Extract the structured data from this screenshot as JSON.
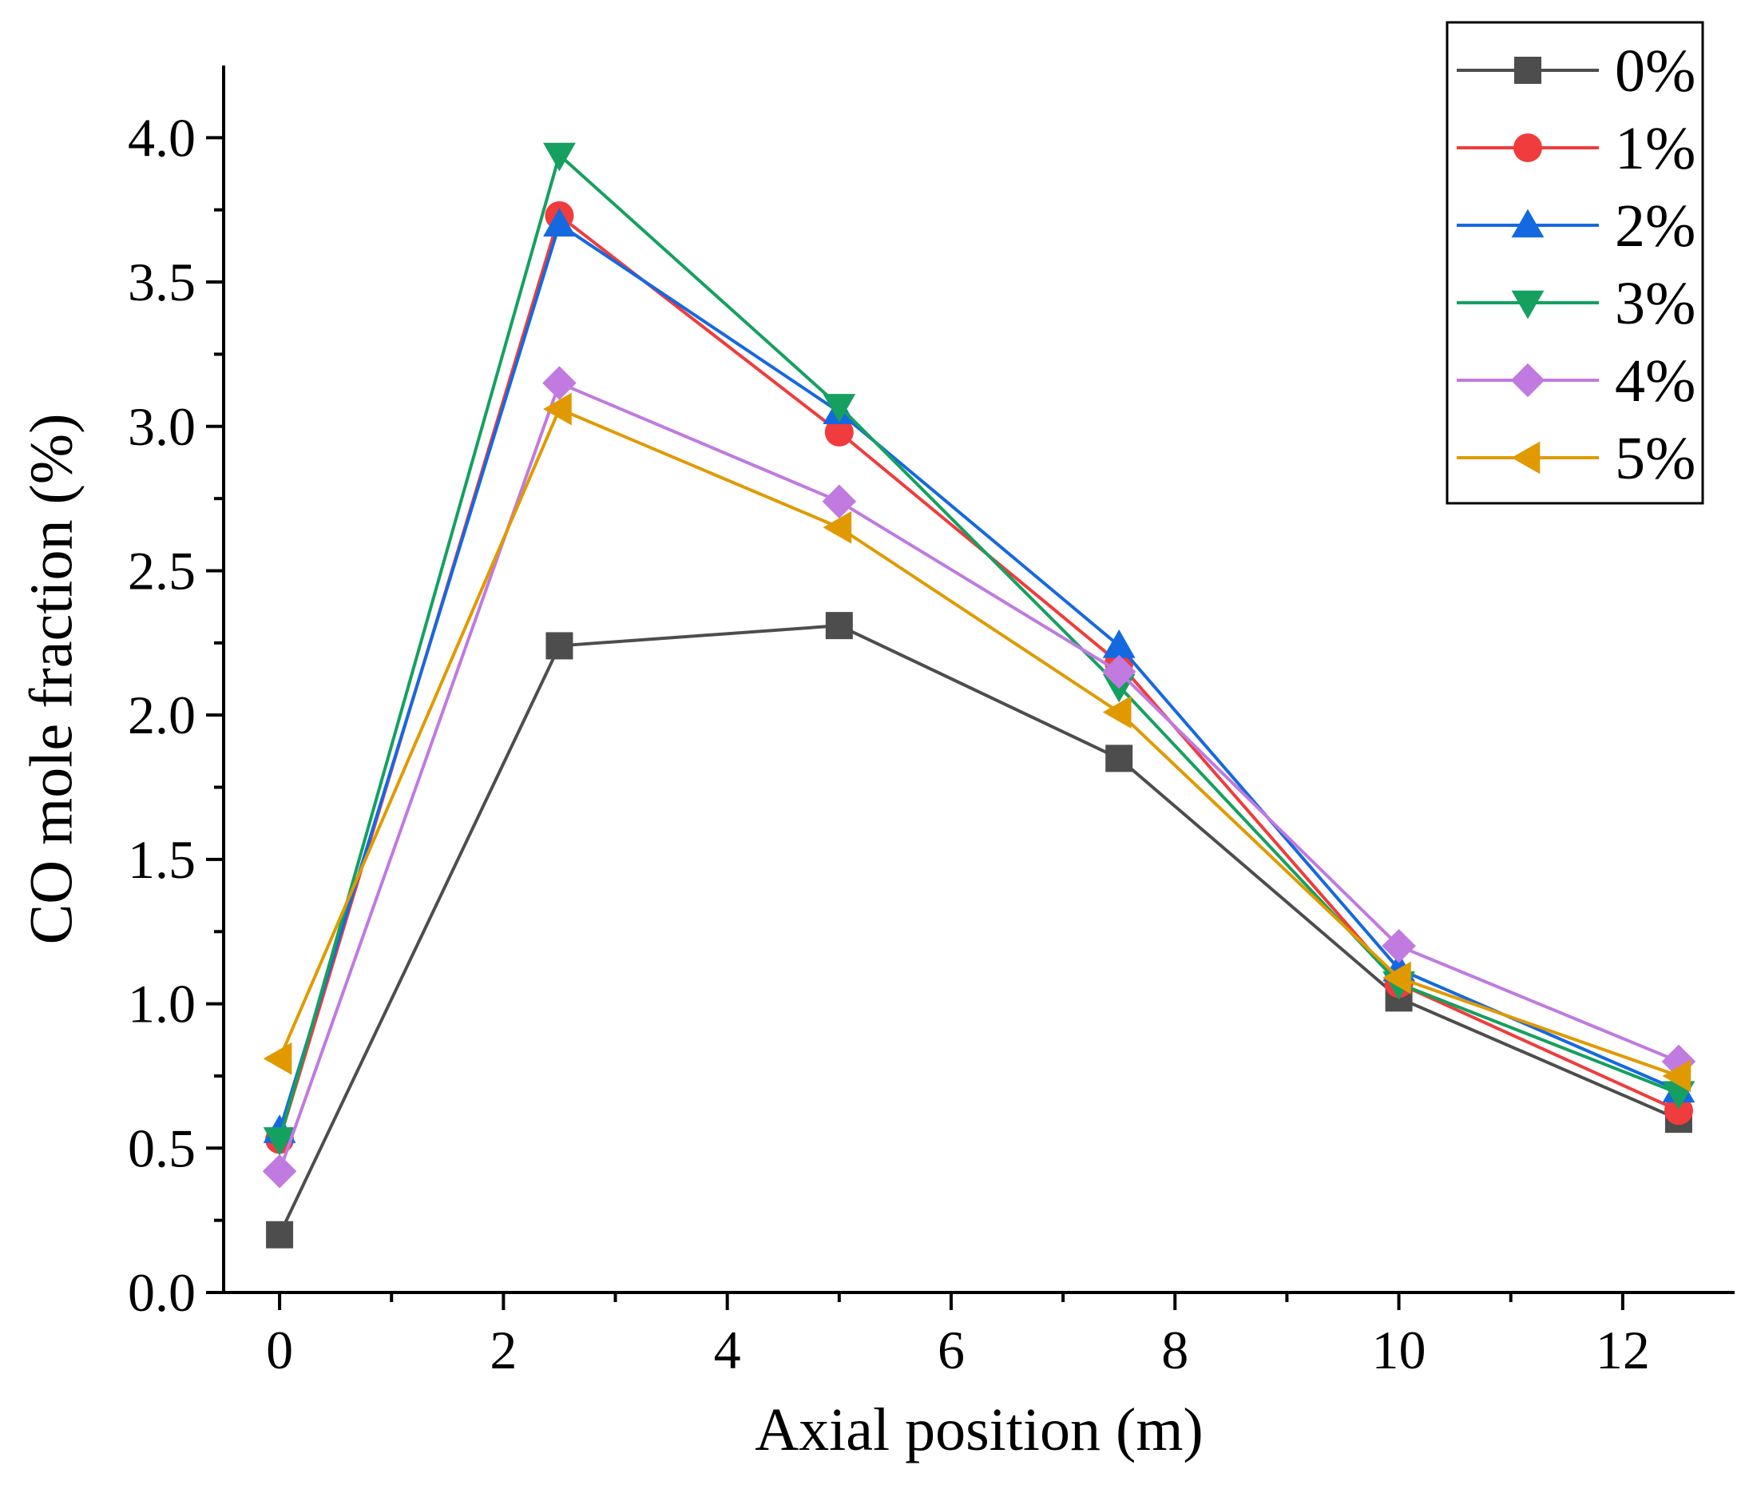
{
  "chart_data": {
    "type": "line",
    "title": "",
    "xlabel": "Axial position (m)",
    "ylabel": "CO mole fraction (%)",
    "xlim": [
      -0.5,
      13
    ],
    "ylim": [
      0,
      4.25
    ],
    "x": [
      0,
      2.5,
      5,
      7.5,
      10,
      12.5
    ],
    "xticks": [
      0,
      2,
      4,
      6,
      8,
      10,
      12
    ],
    "xtick_labels": [
      "0",
      "2",
      "4",
      "6",
      "8",
      "10",
      "12"
    ],
    "yticks": [
      0.0,
      0.5,
      1.0,
      1.5,
      2.0,
      2.5,
      3.0,
      3.5,
      4.0
    ],
    "ytick_labels": [
      "0.0",
      "0.5",
      "1.0",
      "1.5",
      "2.0",
      "2.5",
      "3.0",
      "3.5",
      "4.0"
    ],
    "legend_position": "top-right",
    "grid": false,
    "series": [
      {
        "name": "0%",
        "color": "#4d4d4d",
        "marker": "square",
        "values": [
          0.2,
          2.24,
          2.31,
          1.85,
          1.02,
          0.6
        ]
      },
      {
        "name": "1%",
        "color": "#f03c3c",
        "marker": "circle",
        "values": [
          0.53,
          3.73,
          2.98,
          2.18,
          1.07,
          0.63
        ]
      },
      {
        "name": "2%",
        "color": "#1569e0",
        "marker": "triangle-up",
        "values": [
          0.56,
          3.7,
          3.05,
          2.24,
          1.12,
          0.7
        ]
      },
      {
        "name": "3%",
        "color": "#15a060",
        "marker": "triangle-down",
        "values": [
          0.53,
          3.94,
          3.07,
          2.1,
          1.07,
          0.69
        ]
      },
      {
        "name": "4%",
        "color": "#c07ae0",
        "marker": "diamond",
        "values": [
          0.42,
          3.15,
          2.74,
          2.15,
          1.2,
          0.8
        ]
      },
      {
        "name": "5%",
        "color": "#e09a00",
        "marker": "triangle-left",
        "values": [
          0.81,
          3.06,
          2.65,
          2.01,
          1.09,
          0.75
        ]
      }
    ]
  }
}
